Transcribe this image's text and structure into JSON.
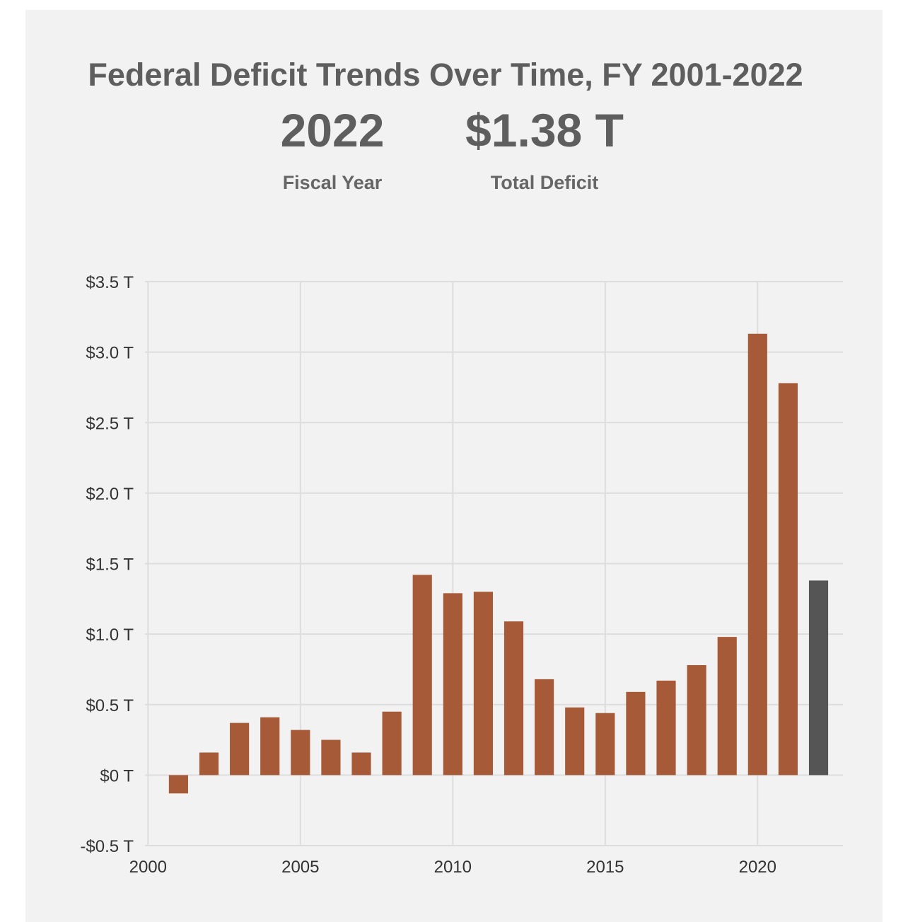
{
  "header": {
    "title": "Federal Deficit Trends Over Time, FY 2001-2022"
  },
  "kpis": {
    "fiscal_year_value": "2022",
    "fiscal_year_label": "Fiscal Year",
    "deficit_value": "$1.38 T",
    "deficit_label": "Total Deficit"
  },
  "colors": {
    "bar": "#a65a38",
    "highlight_bar": "#555555",
    "grid": "#dddddd",
    "background": "#f2f2f2"
  },
  "chart_data": {
    "type": "bar",
    "title": "Federal Deficit Trends Over Time, FY 2001-2022",
    "xlabel": "",
    "ylabel": "",
    "categories": [
      2001,
      2002,
      2003,
      2004,
      2005,
      2006,
      2007,
      2008,
      2009,
      2010,
      2011,
      2012,
      2013,
      2014,
      2015,
      2016,
      2017,
      2018,
      2019,
      2020,
      2021,
      2022
    ],
    "values": [
      -0.13,
      0.16,
      0.37,
      0.41,
      0.32,
      0.25,
      0.16,
      0.45,
      1.42,
      1.29,
      1.3,
      1.09,
      0.68,
      0.48,
      0.44,
      0.59,
      0.67,
      0.78,
      0.98,
      3.13,
      2.78,
      1.38
    ],
    "highlight": 2022,
    "xlim": [
      1999.9,
      2022.8
    ],
    "ylim": [
      -0.5,
      3.5
    ],
    "x_ticks": [
      2000,
      2005,
      2010,
      2015,
      2020
    ],
    "x_tick_labels": [
      "2000",
      "2005",
      "2010",
      "2015",
      "2020"
    ],
    "y_ticks": [
      -0.5,
      0,
      0.5,
      1.0,
      1.5,
      2.0,
      2.5,
      3.0,
      3.5
    ],
    "y_tick_labels": [
      "-$0.5 T",
      "$0 T",
      "$0.5 T",
      "$1.0 T",
      "$1.5 T",
      "$2.0 T",
      "$2.5 T",
      "$3.0 T",
      "$3.5 T"
    ],
    "grid": true
  }
}
